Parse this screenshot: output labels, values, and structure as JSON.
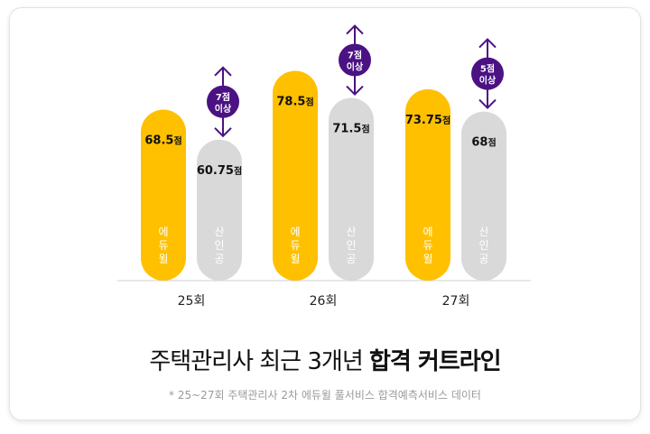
{
  "chart_data": {
    "type": "bar",
    "categories": [
      "25회",
      "26회",
      "27회"
    ],
    "series": [
      {
        "name": "에듀윌",
        "values": [
          68.5,
          78.5,
          73.75
        ],
        "labels": [
          "68.5",
          "78.5",
          "73.75"
        ],
        "color": "#FFC000"
      },
      {
        "name": "산인공",
        "values": [
          60.75,
          71.5,
          68
        ],
        "labels": [
          "60.75",
          "71.5",
          "68"
        ],
        "color": "#D9D9D9"
      }
    ],
    "unit": "점",
    "differences": [
      {
        "line1": "7점",
        "line2": "이상"
      },
      {
        "line1": "7점",
        "line2": "이상"
      },
      {
        "line1": "5점",
        "line2": "이상"
      }
    ],
    "badge_color": "#4B1283",
    "title": "주택관리사 최근 3개년 합격 커트라인",
    "title_prefix": "주택관리사 최근 3개년 ",
    "title_bold": "합격 커트라인"
  },
  "footnote": "* 25~27회 주택관리사 2차 에듀윌 풀서비스 합격예측서비스 데이터"
}
